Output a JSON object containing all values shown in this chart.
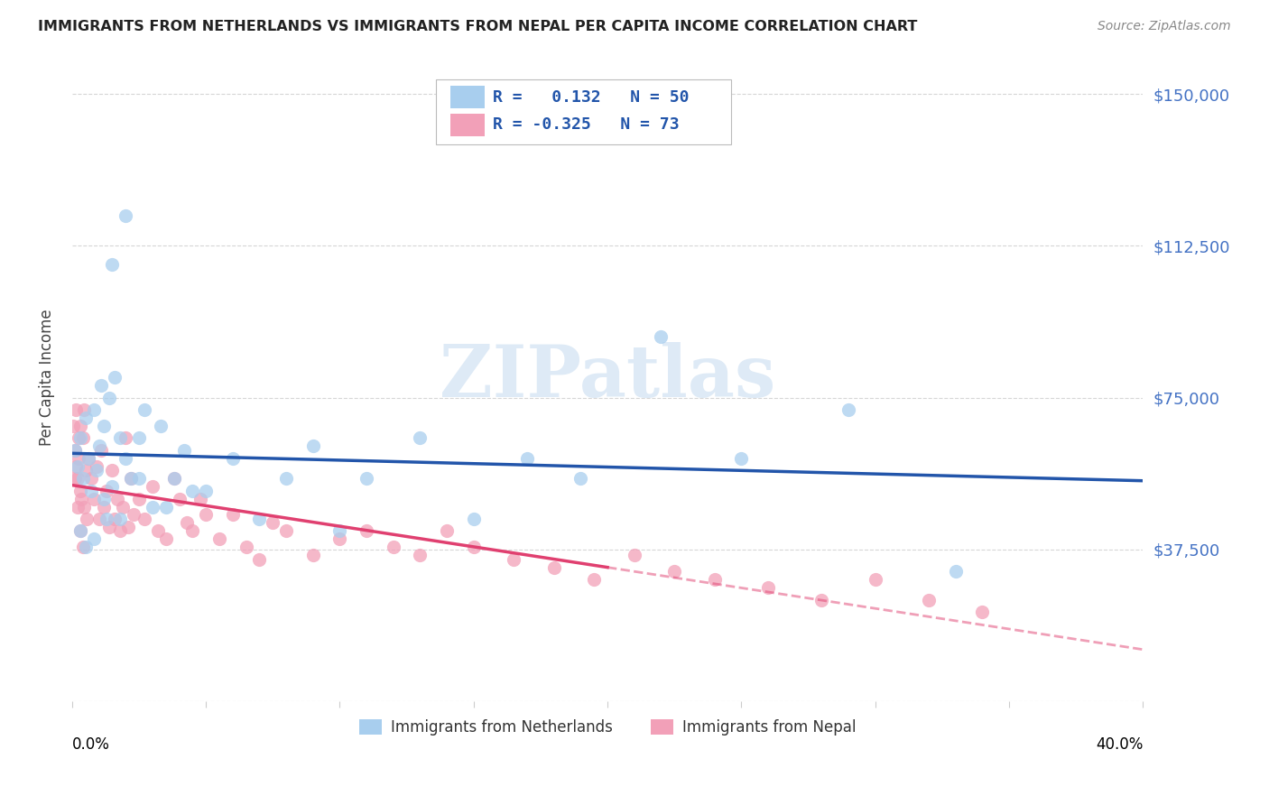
{
  "title": "IMMIGRANTS FROM NETHERLANDS VS IMMIGRANTS FROM NEPAL PER CAPITA INCOME CORRELATION CHART",
  "source": "Source: ZipAtlas.com",
  "ylabel": "Per Capita Income",
  "yticks": [
    0,
    37500,
    75000,
    112500,
    150000
  ],
  "ytick_labels": [
    "",
    "$37,500",
    "$75,000",
    "$112,500",
    "$150,000"
  ],
  "ymin": 0,
  "ymax": 160000,
  "xmin": 0.0,
  "xmax": 0.4,
  "color_netherlands": "#A8CEEE",
  "color_nepal": "#F2A0B8",
  "line_color_netherlands": "#2255AA",
  "line_color_nepal": "#E04070",
  "watermark": "ZIPatlas",
  "netherlands_x": [
    0.001,
    0.002,
    0.003,
    0.004,
    0.005,
    0.006,
    0.007,
    0.008,
    0.009,
    0.01,
    0.011,
    0.012,
    0.013,
    0.014,
    0.015,
    0.016,
    0.018,
    0.02,
    0.022,
    0.025,
    0.027,
    0.03,
    0.033,
    0.038,
    0.042,
    0.05,
    0.06,
    0.07,
    0.08,
    0.09,
    0.1,
    0.11,
    0.13,
    0.15,
    0.17,
    0.19,
    0.22,
    0.25,
    0.29,
    0.33,
    0.02,
    0.015,
    0.008,
    0.005,
    0.003,
    0.012,
    0.018,
    0.025,
    0.035,
    0.045
  ],
  "netherlands_y": [
    62000,
    58000,
    65000,
    55000,
    70000,
    60000,
    52000,
    72000,
    57000,
    63000,
    78000,
    68000,
    45000,
    75000,
    53000,
    80000,
    65000,
    60000,
    55000,
    65000,
    72000,
    48000,
    68000,
    55000,
    62000,
    52000,
    60000,
    45000,
    55000,
    63000,
    42000,
    55000,
    65000,
    45000,
    60000,
    55000,
    90000,
    60000,
    72000,
    32000,
    120000,
    108000,
    40000,
    38000,
    42000,
    50000,
    45000,
    55000,
    48000,
    52000
  ],
  "nepal_x": [
    0.0005,
    0.001,
    0.0013,
    0.0015,
    0.002,
    0.0023,
    0.0025,
    0.003,
    0.0032,
    0.0035,
    0.004,
    0.0043,
    0.0045,
    0.005,
    0.0053,
    0.006,
    0.007,
    0.008,
    0.009,
    0.01,
    0.011,
    0.012,
    0.013,
    0.014,
    0.015,
    0.016,
    0.017,
    0.018,
    0.019,
    0.02,
    0.021,
    0.022,
    0.023,
    0.025,
    0.027,
    0.03,
    0.032,
    0.035,
    0.038,
    0.04,
    0.043,
    0.045,
    0.048,
    0.05,
    0.055,
    0.06,
    0.065,
    0.07,
    0.075,
    0.08,
    0.09,
    0.1,
    0.11,
    0.12,
    0.13,
    0.14,
    0.15,
    0.165,
    0.18,
    0.195,
    0.21,
    0.225,
    0.24,
    0.26,
    0.28,
    0.3,
    0.32,
    0.34,
    0.001,
    0.002,
    0.003,
    0.004
  ],
  "nepal_y": [
    68000,
    62000,
    58000,
    72000,
    55000,
    65000,
    60000,
    52000,
    68000,
    50000,
    65000,
    72000,
    48000,
    57000,
    45000,
    60000,
    55000,
    50000,
    58000,
    45000,
    62000,
    48000,
    52000,
    43000,
    57000,
    45000,
    50000,
    42000,
    48000,
    65000,
    43000,
    55000,
    46000,
    50000,
    45000,
    53000,
    42000,
    40000,
    55000,
    50000,
    44000,
    42000,
    50000,
    46000,
    40000,
    46000,
    38000,
    35000,
    44000,
    42000,
    36000,
    40000,
    42000,
    38000,
    36000,
    42000,
    38000,
    35000,
    33000,
    30000,
    36000,
    32000,
    30000,
    28000,
    25000,
    30000,
    25000,
    22000,
    55000,
    48000,
    42000,
    38000
  ]
}
